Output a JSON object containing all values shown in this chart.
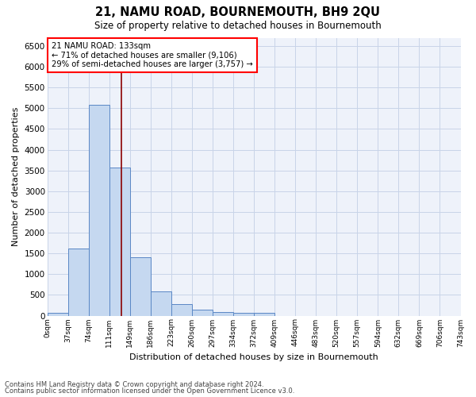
{
  "title": "21, NAMU ROAD, BOURNEMOUTH, BH9 2QU",
  "subtitle": "Size of property relative to detached houses in Bournemouth",
  "xlabel": "Distribution of detached houses by size in Bournemouth",
  "ylabel": "Number of detached properties",
  "footnote1": "Contains HM Land Registry data © Crown copyright and database right 2024.",
  "footnote2": "Contains public sector information licensed under the Open Government Licence v3.0.",
  "bar_values": [
    75,
    1625,
    5075,
    3575,
    1400,
    575,
    285,
    140,
    90,
    60,
    60,
    0,
    0,
    0,
    0,
    0,
    0,
    0,
    0,
    0
  ],
  "bar_color": "#c5d8f0",
  "bar_edge_color": "#5a87c5",
  "tick_labels": [
    "0sqm",
    "37sqm",
    "74sqm",
    "111sqm",
    "149sqm",
    "186sqm",
    "223sqm",
    "260sqm",
    "297sqm",
    "334sqm",
    "372sqm",
    "409sqm",
    "446sqm",
    "483sqm",
    "520sqm",
    "557sqm",
    "594sqm",
    "632sqm",
    "669sqm",
    "706sqm",
    "743sqm"
  ],
  "vline_x": 3.6,
  "vline_color": "#8b0000",
  "ylim": [
    0,
    6700
  ],
  "yticks": [
    0,
    500,
    1000,
    1500,
    2000,
    2500,
    3000,
    3500,
    4000,
    4500,
    5000,
    5500,
    6000,
    6500
  ],
  "annotation_text": "21 NAMU ROAD: 133sqm\n← 71% of detached houses are smaller (9,106)\n29% of semi-detached houses are larger (3,757) →",
  "grid_color": "#c8d4e8",
  "background_color": "#eef2fa"
}
